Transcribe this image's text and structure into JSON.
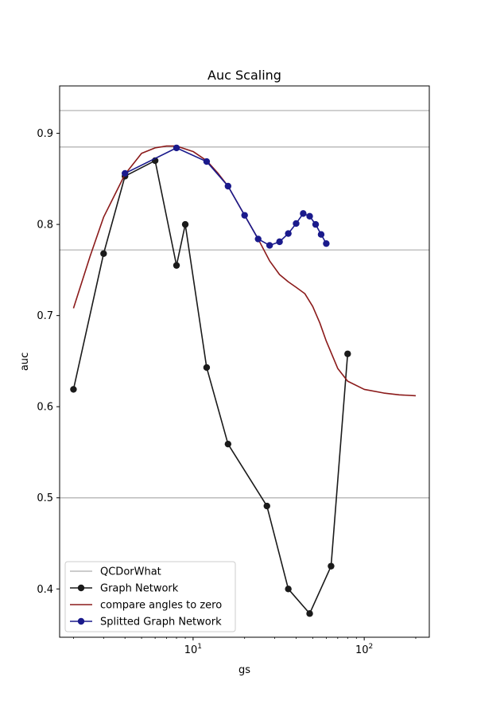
{
  "chart_data": {
    "type": "line",
    "title": "Auc Scaling",
    "xlabel": "gs",
    "ylabel": "auc",
    "xscale": "log",
    "xlim": [
      1.66,
      240
    ],
    "ylim": [
      0.347,
      0.952
    ],
    "xticks": [
      {
        "value": 10,
        "base": "10",
        "exp": "1"
      },
      {
        "value": 100,
        "base": "10",
        "exp": "2"
      }
    ],
    "yticks": [
      {
        "value": 0.4,
        "label": "0.4"
      },
      {
        "value": 0.5,
        "label": "0.5"
      },
      {
        "value": 0.6,
        "label": "0.6"
      },
      {
        "value": 0.7,
        "label": "0.7"
      },
      {
        "value": 0.8,
        "label": "0.8"
      },
      {
        "value": 0.9,
        "label": "0.9"
      }
    ],
    "grid": false,
    "legend_position": "lower-left",
    "hlines": {
      "name": "QCDorWhat",
      "color": "#bbbbbb",
      "values": [
        0.925,
        0.885,
        0.772,
        0.5
      ]
    },
    "series": [
      {
        "name": "Graph Network",
        "color": "#1a1a1a",
        "marker": true,
        "x": [
          2,
          3,
          4,
          6,
          8,
          9,
          12,
          16,
          27,
          36,
          48,
          64,
          80
        ],
        "y": [
          0.619,
          0.768,
          0.853,
          0.87,
          0.755,
          0.8,
          0.643,
          0.559,
          0.491,
          0.4,
          0.373,
          0.425,
          0.658
        ]
      },
      {
        "name": "compare angles to zero",
        "color": "#8b1a1a",
        "marker": false,
        "x": [
          2,
          2.5,
          3,
          4,
          5,
          6,
          7,
          8,
          10,
          12,
          14,
          16,
          20,
          24,
          28,
          32,
          36,
          40,
          45,
          50,
          55,
          60,
          70,
          80,
          100,
          130,
          160,
          200
        ],
        "y": [
          0.708,
          0.765,
          0.808,
          0.855,
          0.878,
          0.884,
          0.886,
          0.886,
          0.88,
          0.87,
          0.856,
          0.842,
          0.81,
          0.784,
          0.76,
          0.745,
          0.737,
          0.731,
          0.724,
          0.71,
          0.692,
          0.672,
          0.642,
          0.628,
          0.619,
          0.615,
          0.613,
          0.612
        ]
      },
      {
        "name": "Splitted Graph Network",
        "color": "#1a1a8c",
        "marker": true,
        "x": [
          4,
          8,
          12,
          16,
          20,
          24,
          28,
          32,
          36,
          40,
          44,
          48,
          52,
          56,
          60
        ],
        "y": [
          0.856,
          0.884,
          0.869,
          0.842,
          0.81,
          0.784,
          0.777,
          0.781,
          0.79,
          0.801,
          0.812,
          0.809,
          0.8,
          0.789,
          0.779
        ]
      }
    ]
  }
}
